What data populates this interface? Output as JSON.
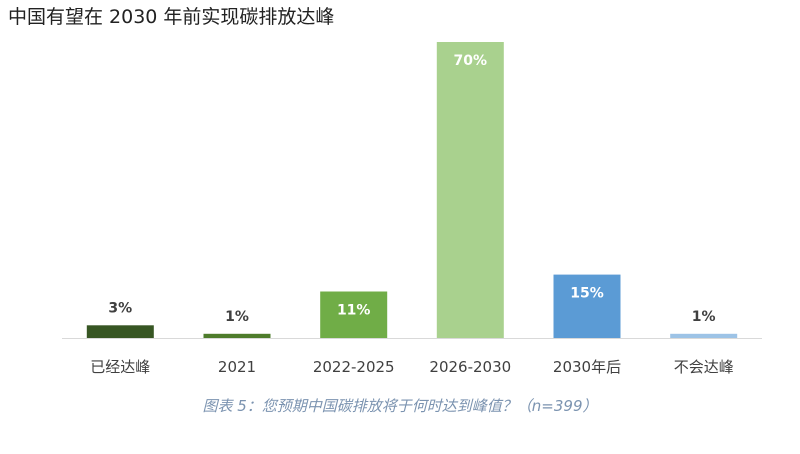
{
  "title": "中国有望在 2030 年前实现碳排放达峰",
  "caption": "图表 5：您预期中国碳排放将于何时达到峰值？（n=399）",
  "chart_data": {
    "type": "bar",
    "categories": [
      "已经达峰",
      "2021",
      "2022-2025",
      "2026-2030",
      "2030年后",
      "不会达峰"
    ],
    "values": [
      3,
      1,
      11,
      70,
      15,
      1
    ],
    "data_labels": [
      "3%",
      "1%",
      "11%",
      "70%",
      "15%",
      "1%"
    ],
    "bar_colors": [
      "#375623",
      "#4e7c2b",
      "#70ad47",
      "#a9d18e",
      "#5b9bd5",
      "#9dc3e6"
    ],
    "label_inside": [
      false,
      false,
      true,
      true,
      true,
      false
    ],
    "ylim": [
      0,
      70
    ],
    "grid": false,
    "legend": "none"
  }
}
